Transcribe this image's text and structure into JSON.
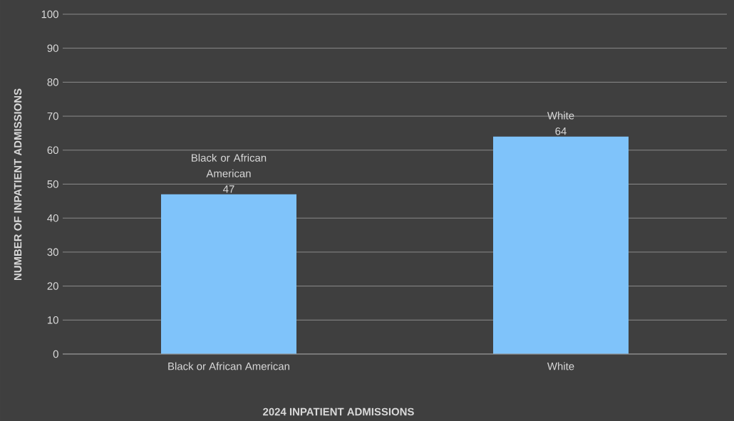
{
  "chart_data": {
    "type": "bar",
    "xlabel": "2024 INPATIENT ADMISSIONS",
    "ylabel": "NUMBER OF INPATIENT ADMISSIONS",
    "categories": [
      "Black or African American",
      "White"
    ],
    "values": [
      47,
      64
    ],
    "value_labels": [
      "47",
      "64"
    ],
    "color": "#7fc3fa",
    "ylim": [
      0,
      100
    ],
    "yticks": [
      0,
      10,
      20,
      30,
      40,
      50,
      60,
      70,
      80,
      90,
      100
    ],
    "grid": "y"
  }
}
